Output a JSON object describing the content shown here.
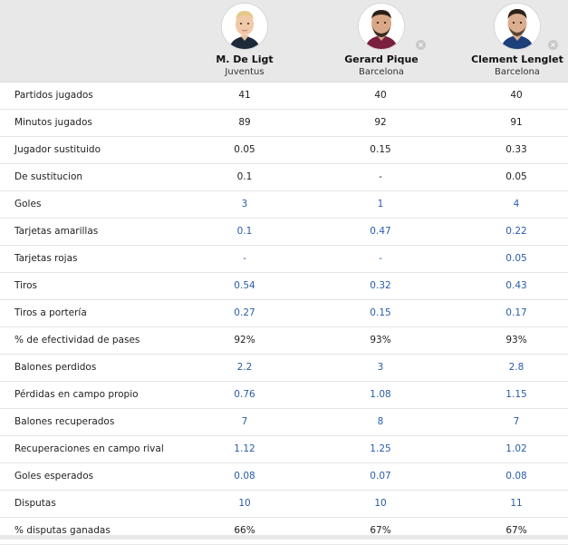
{
  "players": [
    {
      "name": "M. De Ligt",
      "team": "Juventus",
      "removable": false
    },
    {
      "name": "Gerard Pique",
      "team": "Barcelona",
      "removable": true
    },
    {
      "name": "Clement Lenglet",
      "team": "Barcelona",
      "removable": true
    }
  ],
  "icons": {
    "avatar": "player-photo",
    "remove": "close-icon",
    "remove_glyph": "×"
  },
  "colors": {
    "header_bg": "#e8e8e8",
    "value_blue": "#2a5caa",
    "value_dark": "#222222"
  },
  "stats": [
    {
      "label": "Partidos jugados",
      "values": [
        "41",
        "40",
        "40"
      ],
      "style": "dark"
    },
    {
      "label": "Minutos jugados",
      "values": [
        "89",
        "92",
        "91"
      ],
      "style": "dark"
    },
    {
      "label": "Jugador sustituido",
      "values": [
        "0.05",
        "0.15",
        "0.33"
      ],
      "style": "dark"
    },
    {
      "label": "De sustitucion",
      "values": [
        "0.1",
        "-",
        "0.05"
      ],
      "style": "dark"
    },
    {
      "label": "Goles",
      "values": [
        "3",
        "1",
        "4"
      ],
      "style": "blue"
    },
    {
      "label": "Tarjetas amarillas",
      "values": [
        "0.1",
        "0.47",
        "0.22"
      ],
      "style": "blue"
    },
    {
      "label": "Tarjetas rojas",
      "values": [
        "-",
        "-",
        "0.05"
      ],
      "style": "blue"
    },
    {
      "label": "Tiros",
      "values": [
        "0.54",
        "0.32",
        "0.43"
      ],
      "style": "blue"
    },
    {
      "label": "Tiros a portería",
      "values": [
        "0.27",
        "0.15",
        "0.17"
      ],
      "style": "blue"
    },
    {
      "label": "% de efectividad de pases",
      "values": [
        "92%",
        "93%",
        "93%"
      ],
      "style": "dark"
    },
    {
      "label": "Balones perdidos",
      "values": [
        "2.2",
        "3",
        "2.8"
      ],
      "style": "blue"
    },
    {
      "label": "Pérdidas en campo propio",
      "values": [
        "0.76",
        "1.08",
        "1.15"
      ],
      "style": "blue"
    },
    {
      "label": "Balones recuperados",
      "values": [
        "7",
        "8",
        "7"
      ],
      "style": "blue"
    },
    {
      "label": "Recuperaciones en campo rival",
      "values": [
        "1.12",
        "1.25",
        "1.02"
      ],
      "style": "blue"
    },
    {
      "label": "Goles esperados",
      "values": [
        "0.08",
        "0.07",
        "0.08"
      ],
      "style": "blue"
    },
    {
      "label": "Disputas",
      "values": [
        "10",
        "10",
        "11"
      ],
      "style": "blue"
    },
    {
      "label": "% disputas ganadas",
      "values": [
        "66%",
        "67%",
        "67%"
      ],
      "style": "dark"
    }
  ]
}
